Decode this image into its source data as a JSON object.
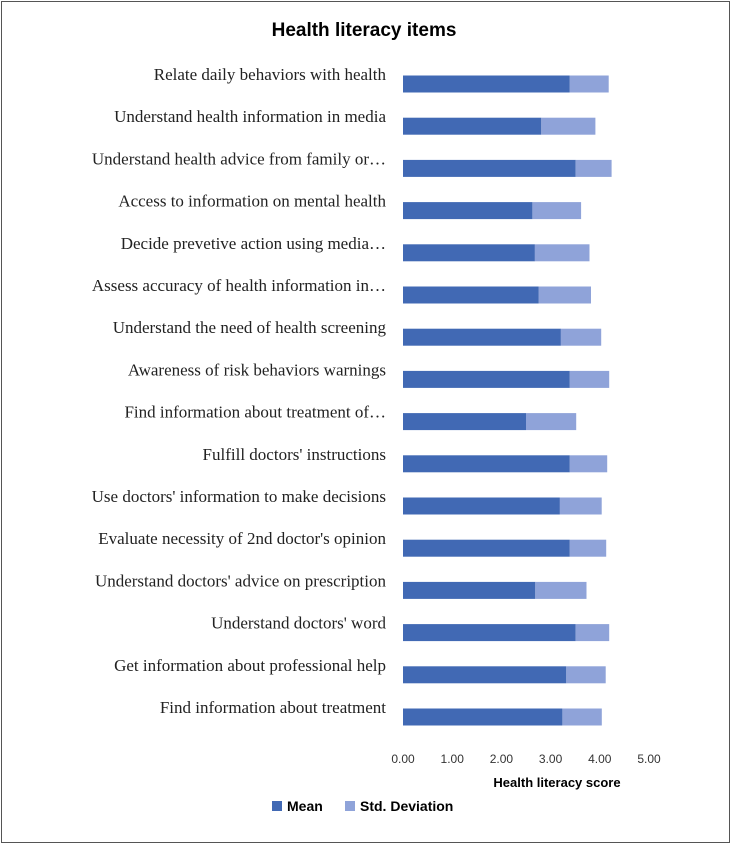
{
  "chart_data": {
    "type": "bar",
    "orientation": "horizontal",
    "stacked": true,
    "title": "Health literacy items",
    "xlabel": "Health literacy score",
    "ylabel": "",
    "xlim": [
      0,
      5
    ],
    "x_ticks": [
      "0.00",
      "1.00",
      "2.00",
      "3.00",
      "4.00",
      "5.00"
    ],
    "grid": false,
    "legend_position": "bottom",
    "categories": [
      "Relate daily behaviors with health",
      "Understand health information in media",
      "Understand health advice from family or…",
      "Access to information on mental health",
      "Decide prevetive action using media…",
      "Assess accuracy of health information in…",
      "Understand the need of health screening",
      "Awareness of risk behaviors warnings",
      "Find information about treatment of…",
      "Fulfill doctors' instructions",
      "Use doctors' information to make decisions",
      "Evaluate necessity of 2nd doctor's opinion",
      "Understand doctors' advice on prescription",
      "Understand doctors' word",
      "Get information about professional help",
      "Find information about treatment"
    ],
    "series": [
      {
        "name": "Mean",
        "color": "#4169b4",
        "values": [
          3.39,
          2.81,
          3.51,
          2.63,
          2.68,
          2.76,
          3.21,
          3.39,
          2.5,
          3.39,
          3.19,
          3.39,
          2.69,
          3.51,
          3.32,
          3.24
        ]
      },
      {
        "name": "Std. Deviation",
        "color": "#8fa3d9",
        "values": [
          0.79,
          1.1,
          0.73,
          0.99,
          1.11,
          1.06,
          0.82,
          0.8,
          1.02,
          0.76,
          0.85,
          0.74,
          1.04,
          0.68,
          0.8,
          0.8
        ]
      }
    ]
  }
}
